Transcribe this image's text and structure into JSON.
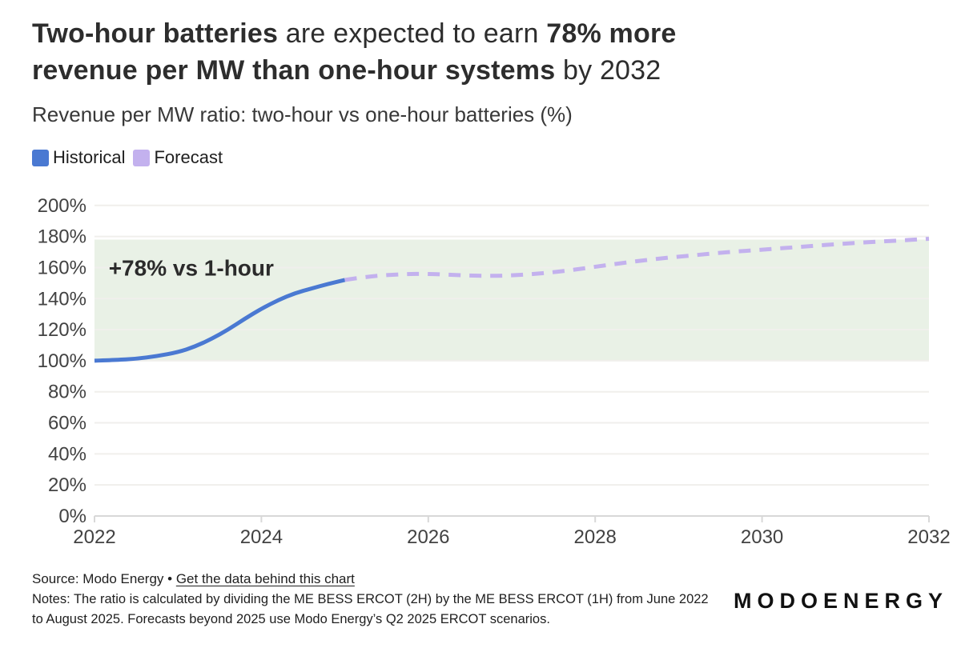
{
  "header": {
    "title": {
      "l1_bold1": "Two-hour batteries",
      "l1_reg": " are expected to earn ",
      "l1_bold2": "78% more",
      "l2_bold": "revenue per MW than one-hour systems",
      "l2_reg": " by 2032"
    },
    "subtitle": "Revenue per MW ratio: two-hour vs one-hour batteries (%)"
  },
  "legend": [
    {
      "label": "Historical",
      "color": "#4a79d2"
    },
    {
      "label": "Forecast",
      "color": "#c3b1ee"
    }
  ],
  "colors": {
    "historical": "#4a79d2",
    "forecast": "#c3b1ee",
    "band": "#e9f1e6",
    "grid": "#f0efec",
    "axis": "#d8d8d8",
    "tick_label": "#424242",
    "annotation": "#2b2b2b"
  },
  "chart_data": {
    "type": "line",
    "title": "Revenue per MW ratio: two-hour vs one-hour batteries (%)",
    "xlabel": "",
    "ylabel": "",
    "xlim": [
      2022,
      2032
    ],
    "ylim": [
      0,
      200
    ],
    "x_ticks": [
      2022,
      2024,
      2026,
      2028,
      2030,
      2032
    ],
    "y_ticks": [
      0,
      20,
      40,
      60,
      80,
      100,
      120,
      140,
      160,
      180,
      200
    ],
    "y_tick_suffix": "%",
    "grid": true,
    "legend_position": "top-left",
    "band": {
      "from": 100,
      "to": 178,
      "label": "target-band"
    },
    "annotation": {
      "text": "+78% vs 1-hour",
      "x": 2022.17,
      "y": 160
    },
    "series": [
      {
        "name": "Historical",
        "style": "solid",
        "points": [
          [
            2022.0,
            100
          ],
          [
            2022.25,
            100.5
          ],
          [
            2022.5,
            101.2
          ],
          [
            2022.75,
            103
          ],
          [
            2023.0,
            105.5
          ],
          [
            2023.2,
            109
          ],
          [
            2023.4,
            114
          ],
          [
            2023.6,
            120
          ],
          [
            2023.8,
            127
          ],
          [
            2024.0,
            133.5
          ],
          [
            2024.2,
            139
          ],
          [
            2024.4,
            143.5
          ],
          [
            2024.6,
            146.5
          ],
          [
            2024.8,
            149.5
          ],
          [
            2025.0,
            152
          ]
        ]
      },
      {
        "name": "Forecast",
        "style": "dashed",
        "points": [
          [
            2025.0,
            152
          ],
          [
            2025.3,
            154.5
          ],
          [
            2025.7,
            155.8
          ],
          [
            2026.0,
            156
          ],
          [
            2026.4,
            155
          ],
          [
            2026.8,
            154.5
          ],
          [
            2027.2,
            155.5
          ],
          [
            2027.6,
            157.5
          ],
          [
            2028.0,
            160.5
          ],
          [
            2028.4,
            163.5
          ],
          [
            2028.8,
            166
          ],
          [
            2029.2,
            168
          ],
          [
            2029.6,
            170
          ],
          [
            2030.0,
            171.5
          ],
          [
            2030.5,
            173.5
          ],
          [
            2031.0,
            175.5
          ],
          [
            2031.5,
            177
          ],
          [
            2032.0,
            178.5
          ]
        ]
      }
    ]
  },
  "footer": {
    "source_prefix": "Source: Modo Energy • ",
    "source_link": "Get the data behind this chart",
    "notes": "Notes: The ratio is calculated by dividing the ME BESS ERCOT (2H) by the ME BESS ERCOT (1H) from June 2022 to August 2025. Forecasts beyond 2025 use Modo Energy’s Q2 2025 ERCOT scenarios.",
    "logo": "MODOENERGY"
  }
}
